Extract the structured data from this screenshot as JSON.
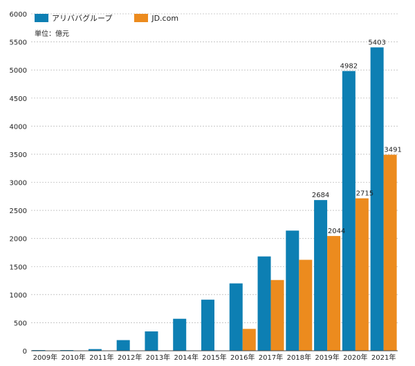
{
  "chart_data": {
    "type": "bar",
    "title": "",
    "unit_label": "単位：億元",
    "xlabel": "",
    "ylabel": "",
    "ylim": [
      0,
      6000
    ],
    "yticks": [
      0,
      500,
      1000,
      1500,
      2000,
      2500,
      3000,
      3500,
      4000,
      4500,
      5000,
      5500,
      6000
    ],
    "grid": true,
    "legend_position": "top-left",
    "categories": [
      "2009年",
      "2010年",
      "2011年",
      "2012年",
      "2013年",
      "2014年",
      "2015年",
      "2016年",
      "2017年",
      "2018年",
      "2019年",
      "2020年",
      "2021年"
    ],
    "series": [
      {
        "name": "アリババグループ",
        "color": "#0d7fb3",
        "values": [
          1,
          5,
          30,
          190,
          345,
          570,
          910,
          1200,
          1680,
          2140,
          2684,
          4982,
          5403
        ],
        "labels": [
          "",
          "",
          "",
          "",
          "",
          "",
          "",
          "",
          "",
          "",
          "2684",
          "4982",
          "5403"
        ]
      },
      {
        "name": "JD.com",
        "color": "#ec8b1e",
        "values": [
          0,
          0,
          0,
          0,
          0,
          0,
          0,
          390,
          1260,
          1620,
          2044,
          2715,
          3491
        ],
        "labels": [
          "",
          "",
          "",
          "",
          "",
          "",
          "",
          "",
          "",
          "",
          "2044",
          "2715",
          "3491"
        ]
      }
    ]
  }
}
